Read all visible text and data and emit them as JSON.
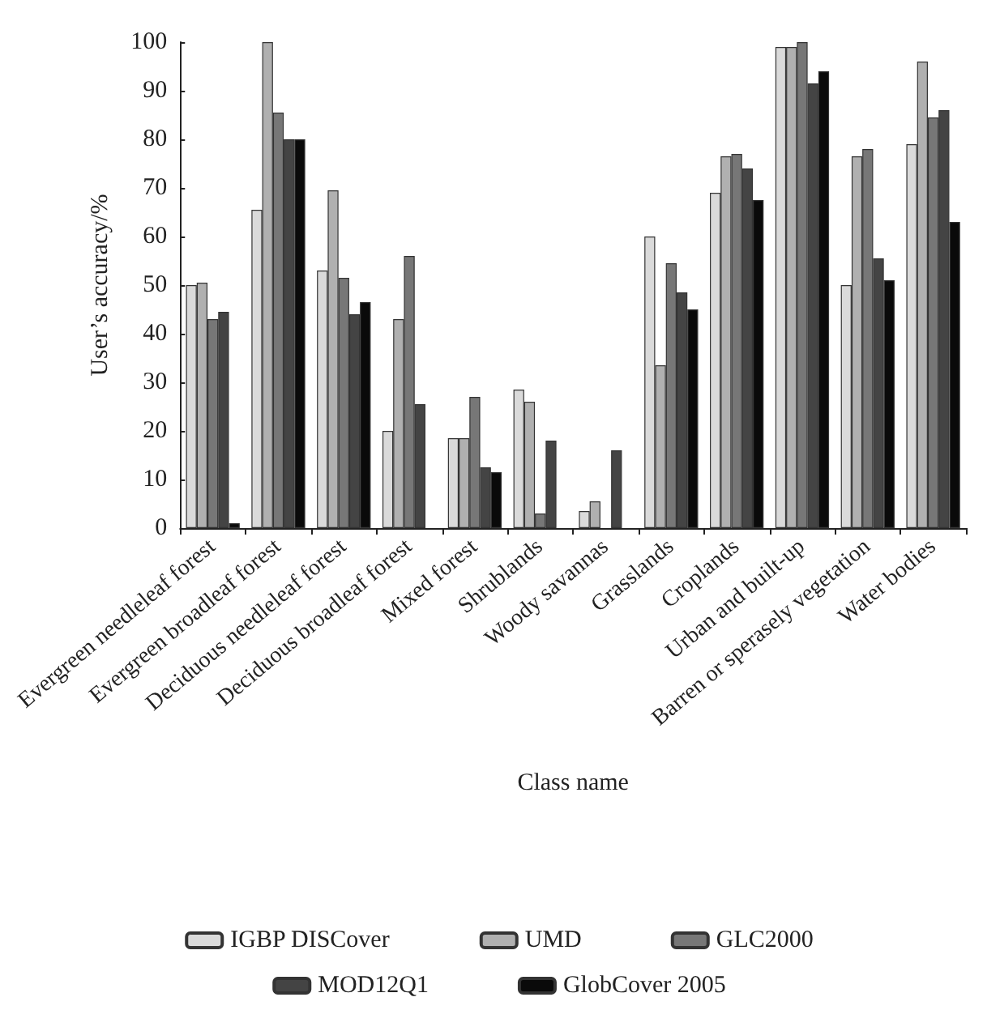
{
  "chart_data": {
    "type": "bar",
    "xlabel": "Class name",
    "ylabel": "User’s accuracy/%",
    "categories": [
      "Evergreen needleleaf forest",
      "Evergreen broadleaf forest",
      "Deciduous needleleaf forest",
      "Deciduous broadleaf forest",
      "Mixed forest",
      "Shrublands",
      "Woody savannas",
      "Grasslands",
      "Croplands",
      "Urban and built-up",
      "Barren or sperasely vegetation",
      "Water bodies"
    ],
    "series": [
      {
        "name": "IGBP DISCover",
        "color": "#dadada",
        "values": [
          50,
          65.5,
          53,
          20,
          18.5,
          28.5,
          3.5,
          60,
          69,
          99,
          50,
          79
        ]
      },
      {
        "name": "UMD",
        "color": "#b0b0b0",
        "values": [
          50.5,
          100,
          69.5,
          43,
          18.5,
          26,
          5.5,
          33.5,
          76.5,
          99,
          76.5,
          96
        ]
      },
      {
        "name": "GLC2000",
        "color": "#777777",
        "values": [
          43,
          85.5,
          51.5,
          56,
          27,
          3,
          null,
          54.5,
          77,
          100,
          78,
          84.5
        ]
      },
      {
        "name": "MOD12Q1",
        "color": "#444444",
        "values": [
          44.5,
          80,
          44,
          25.5,
          12.5,
          18,
          16,
          48.5,
          74,
          91.5,
          55.5,
          86
        ]
      },
      {
        "name": "GlobCover 2005",
        "color": "#0a0a0a",
        "values": [
          1,
          80,
          46.5,
          null,
          11.5,
          null,
          null,
          45,
          67.5,
          94,
          51,
          63
        ]
      }
    ],
    "ylim": [
      0,
      100
    ],
    "yticks": [
      0,
      10,
      20,
      30,
      40,
      50,
      60,
      70,
      80,
      90,
      100
    ],
    "grid": false,
    "legend": "bottom"
  }
}
